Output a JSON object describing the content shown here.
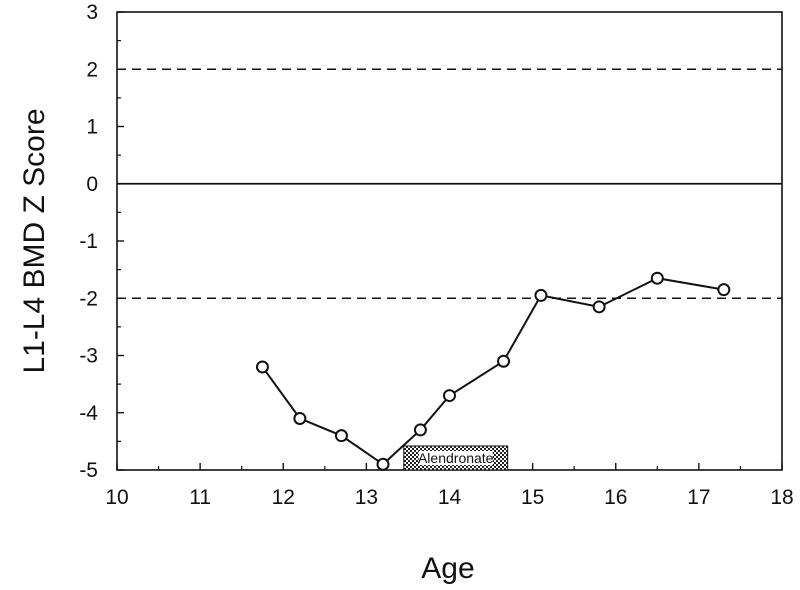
{
  "chart_data": {
    "type": "line",
    "title": "",
    "xlabel": "Age",
    "ylabel": "L1-L4 BMD Z Score",
    "xlim": [
      10,
      18
    ],
    "ylim": [
      -5,
      3
    ],
    "xticks": [
      "10",
      "11",
      "12",
      "13",
      "14",
      "15",
      "16",
      "17",
      "18"
    ],
    "yticks": [
      "3",
      "2",
      "1",
      "0",
      "-1",
      "-2",
      "-3",
      "-4",
      "-5"
    ],
    "grid": false,
    "legend": "none",
    "reference_lines": [
      {
        "y": 2,
        "style": "dashed"
      },
      {
        "y": 0,
        "style": "solid"
      },
      {
        "y": -2,
        "style": "dashed"
      }
    ],
    "series": [
      {
        "x": [
          11.75,
          12.2,
          12.7,
          13.2,
          13.65,
          14.0,
          14.65,
          15.1,
          15.8,
          16.5,
          17.3
        ],
        "y": [
          -3.2,
          -4.1,
          -4.4,
          -4.9,
          -4.3,
          -3.7,
          -3.1,
          -1.95,
          -2.15,
          -1.65,
          -1.85
        ],
        "marker": "open-circle",
        "color": "#111111"
      }
    ],
    "annotations": [
      {
        "text": "Alendronate",
        "x_start": 13.45,
        "x_end": 14.7,
        "style": "hatched-bar"
      }
    ]
  }
}
